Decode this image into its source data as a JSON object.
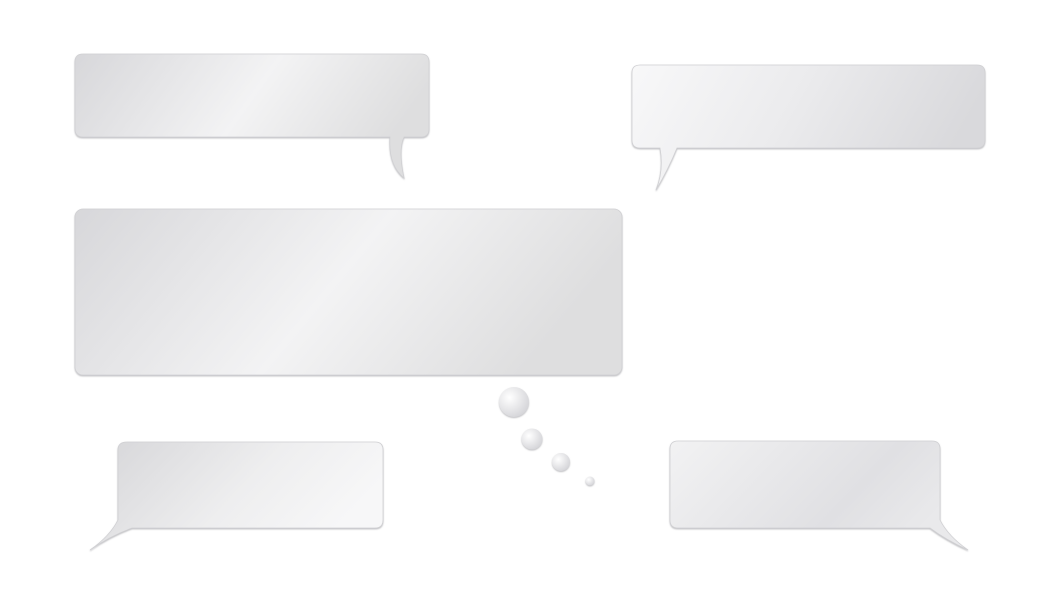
{
  "scene": {
    "description_free": true,
    "bubbles": [
      {
        "id": "speech-bubble-top-left",
        "kind": "speech",
        "tail": "bottom-right-down"
      },
      {
        "id": "speech-bubble-top-right",
        "kind": "speech",
        "tail": "bottom-left-down"
      },
      {
        "id": "thought-bubble-center",
        "kind": "thought",
        "tail": "dots-bottom-right"
      },
      {
        "id": "speech-bubble-bottom-left",
        "kind": "speech",
        "tail": "bottom-left-side"
      },
      {
        "id": "speech-bubble-bottom-right",
        "kind": "speech",
        "tail": "bottom-right-side"
      }
    ],
    "colors": {
      "bubble_light": "#f7f7f8",
      "bubble_mid": "#e9e9eb",
      "bubble_dark": "#d9d9dc",
      "outline": "#c9c9cc"
    }
  }
}
